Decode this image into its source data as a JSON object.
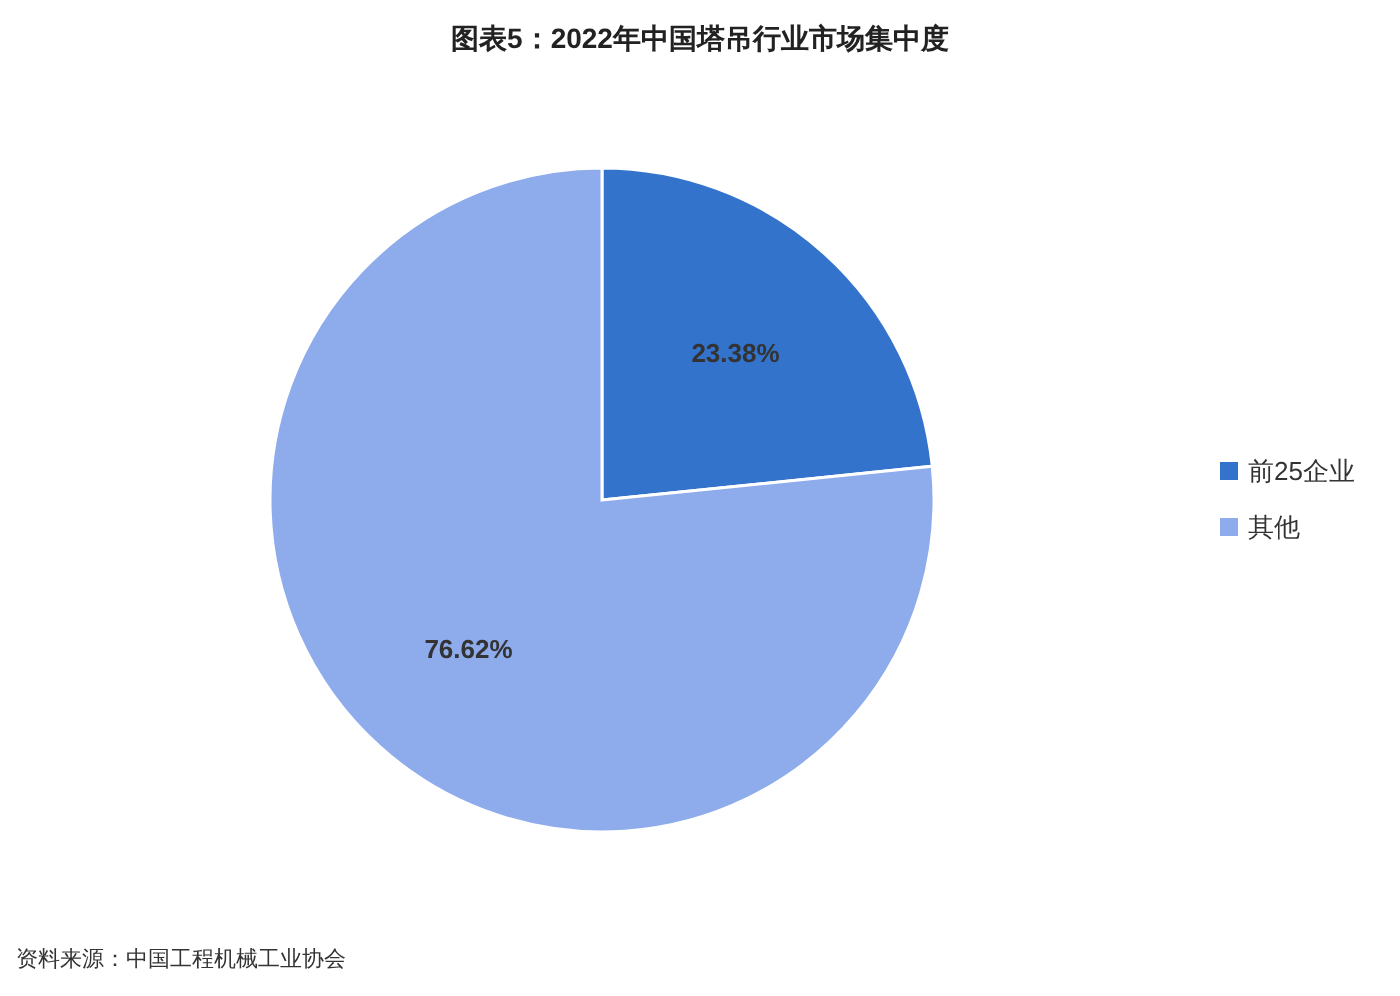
{
  "chart_data": {
    "type": "pie",
    "title": "图表5：2022年中国塔吊行业市场集中度",
    "categories": [
      "前25企业",
      "其他"
    ],
    "values": [
      23.38,
      76.62
    ],
    "colors": [
      "#3473cb",
      "#8eabec"
    ],
    "value_labels": [
      "23.38%",
      "76.62%"
    ],
    "legend": "right",
    "annotations": [
      "资料来源：中国工程机械工业协会"
    ]
  }
}
